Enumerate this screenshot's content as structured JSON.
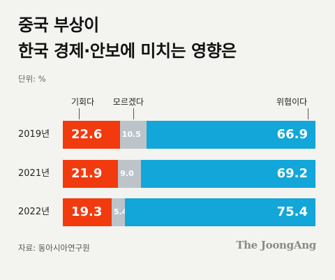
{
  "title_line1": "중국 부상이",
  "title_line2": "한국 경제·안보에 미치는 영향은",
  "unit_label": "단위: %",
  "source": "자료: 동아시아연구원",
  "brand": "The JoongAng",
  "colors": {
    "opportunity": "#f23a0f",
    "unknown": "#bcc4c9",
    "threat": "#12a6d9",
    "background": "#f3f3f0"
  },
  "chart_data": {
    "type": "bar",
    "orientation": "horizontal-stacked",
    "categories": [
      "2019년",
      "2021년",
      "2022년"
    ],
    "series": [
      {
        "name": "기회다",
        "values": [
          22.6,
          21.9,
          19.3
        ]
      },
      {
        "name": "모르겠다",
        "values": [
          10.5,
          9.0,
          5.4
        ]
      },
      {
        "name": "위협이다",
        "values": [
          66.9,
          69.2,
          75.4
        ]
      }
    ],
    "value_labels": [
      [
        "22.6",
        "10.5",
        "66.9"
      ],
      [
        "21.9",
        "9.0",
        "69.2"
      ],
      [
        "19.3",
        "5.4",
        "75.4"
      ]
    ],
    "xlim": [
      0,
      100
    ],
    "legend_placement": "top"
  }
}
